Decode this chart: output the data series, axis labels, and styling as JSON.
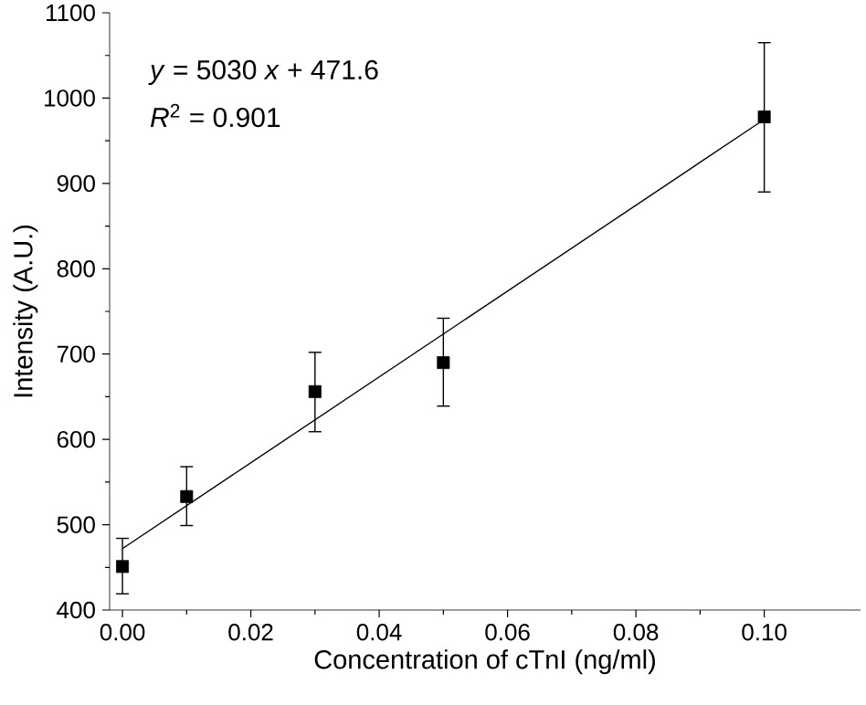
{
  "chart_data": {
    "type": "scatter",
    "xlabel": "Concentration of cTnI (ng/ml)",
    "ylabel": "Intensity (A.U.)",
    "xlim": [
      -0.002,
      0.115
    ],
    "xticks": [
      {
        "value": 0,
        "label": "0.00"
      },
      0.02,
      0.04,
      0.06,
      0.08,
      {
        "value": 0.1,
        "label": "0.10"
      }
    ],
    "ylim": [
      400,
      1100
    ],
    "yticks": [
      400,
      500,
      600,
      700,
      800,
      900,
      1000,
      1100
    ],
    "grid": false,
    "series": [
      {
        "color": "#000000",
        "marker": "square",
        "x": [
          0,
          0.01,
          0.03,
          0.05,
          0.1
        ],
        "values": [
          451,
          533,
          656,
          690,
          978
        ],
        "errors": [
          [
            419,
            484
          ],
          [
            499,
            568
          ],
          [
            609,
            702
          ],
          [
            639,
            742
          ],
          [
            890,
            1065
          ]
        ]
      },
      {
        "type": "line",
        "color": "#000000",
        "marker": "none",
        "line_style": "solid",
        "x": [
          0,
          0.1
        ],
        "values": [
          472,
          975
        ]
      }
    ],
    "annotations": [
      "*y* = 5030 *x* + 471.6",
      "*R*$^{2}$ = 0.901"
    ]
  }
}
